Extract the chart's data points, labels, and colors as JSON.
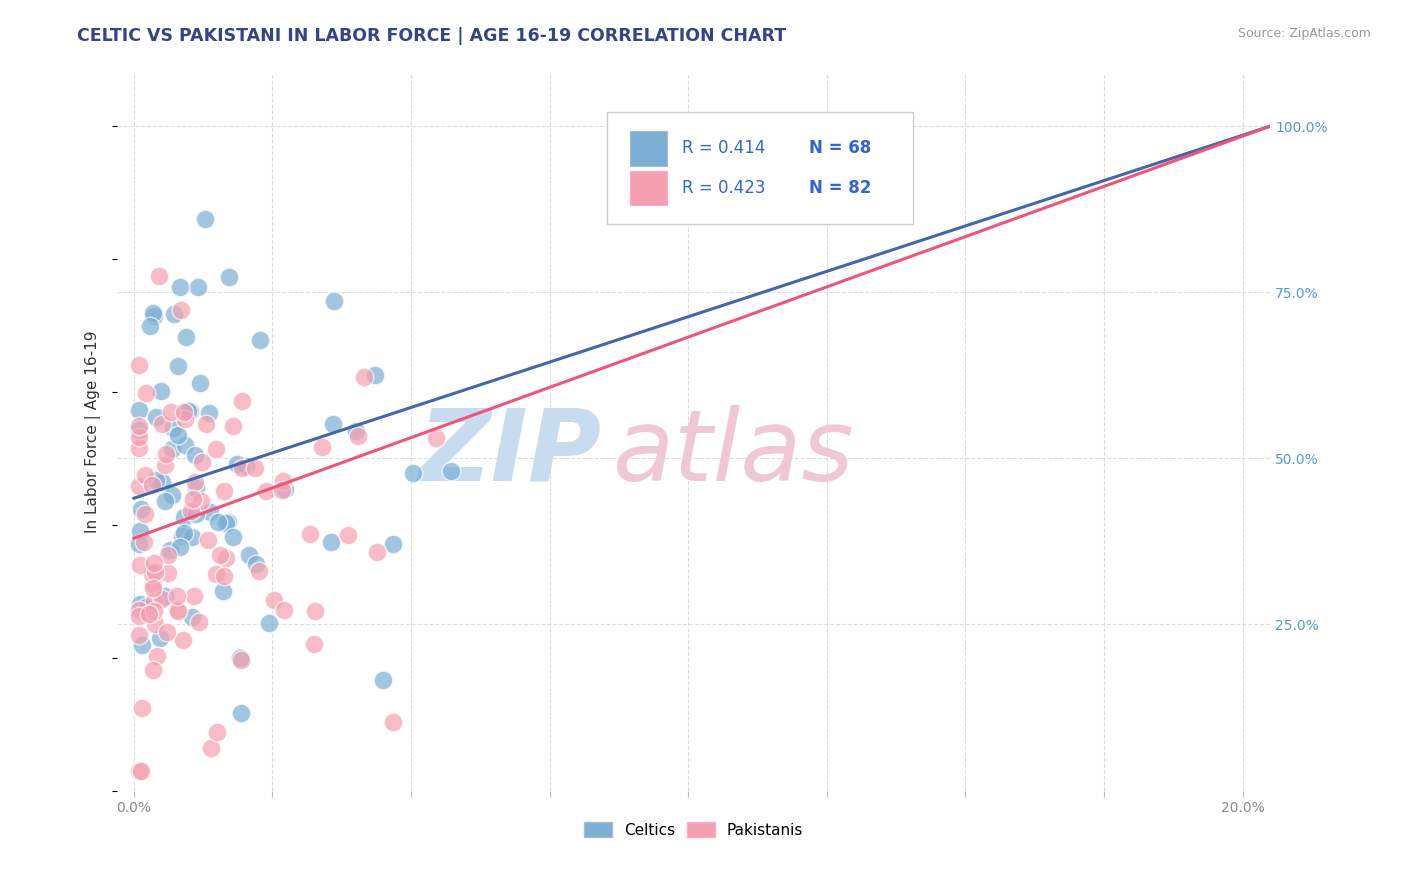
{
  "title": "CELTIC VS PAKISTANI IN LABOR FORCE | AGE 16-19 CORRELATION CHART",
  "source_text": "Source: ZipAtlas.com",
  "ylabel": "In Labor Force | Age 16-19",
  "x_ticks": [
    0.0,
    0.025,
    0.05,
    0.075,
    0.1,
    0.125,
    0.15,
    0.175,
    0.2
  ],
  "y_ticks_right": [
    0.25,
    0.5,
    0.75,
    1.0
  ],
  "y_tick_labels_right": [
    "25.0%",
    "50.0%",
    "75.0%",
    "100.0%"
  ],
  "xlim": [
    -0.003,
    0.205
  ],
  "ylim": [
    0.0,
    1.08
  ],
  "r_celtic": 0.414,
  "n_celtic": 68,
  "r_pakistani": 0.423,
  "n_pakistani": 82,
  "color_celtic": "#7BAFD4",
  "color_pakistani": "#F4A0B0",
  "color_celtic_line": "#4466AA",
  "color_pakistani_line": "#EE5577",
  "color_gray_line": "#BBBBBB",
  "watermark_zip": "ZIP",
  "watermark_atlas": "atlas",
  "watermark_color": "#C8DCF0",
  "watermark_color2": "#F0C8D4",
  "background_color": "#FFFFFF",
  "grid_color": "#DDDDDD",
  "title_color": "#334488",
  "legend_r_color": "#3366CC",
  "legend_n_color": "#3366CC",
  "source_color": "#999999",
  "ylabel_color": "#333333",
  "tick_color": "#888888",
  "right_tick_color": "#5599CC"
}
